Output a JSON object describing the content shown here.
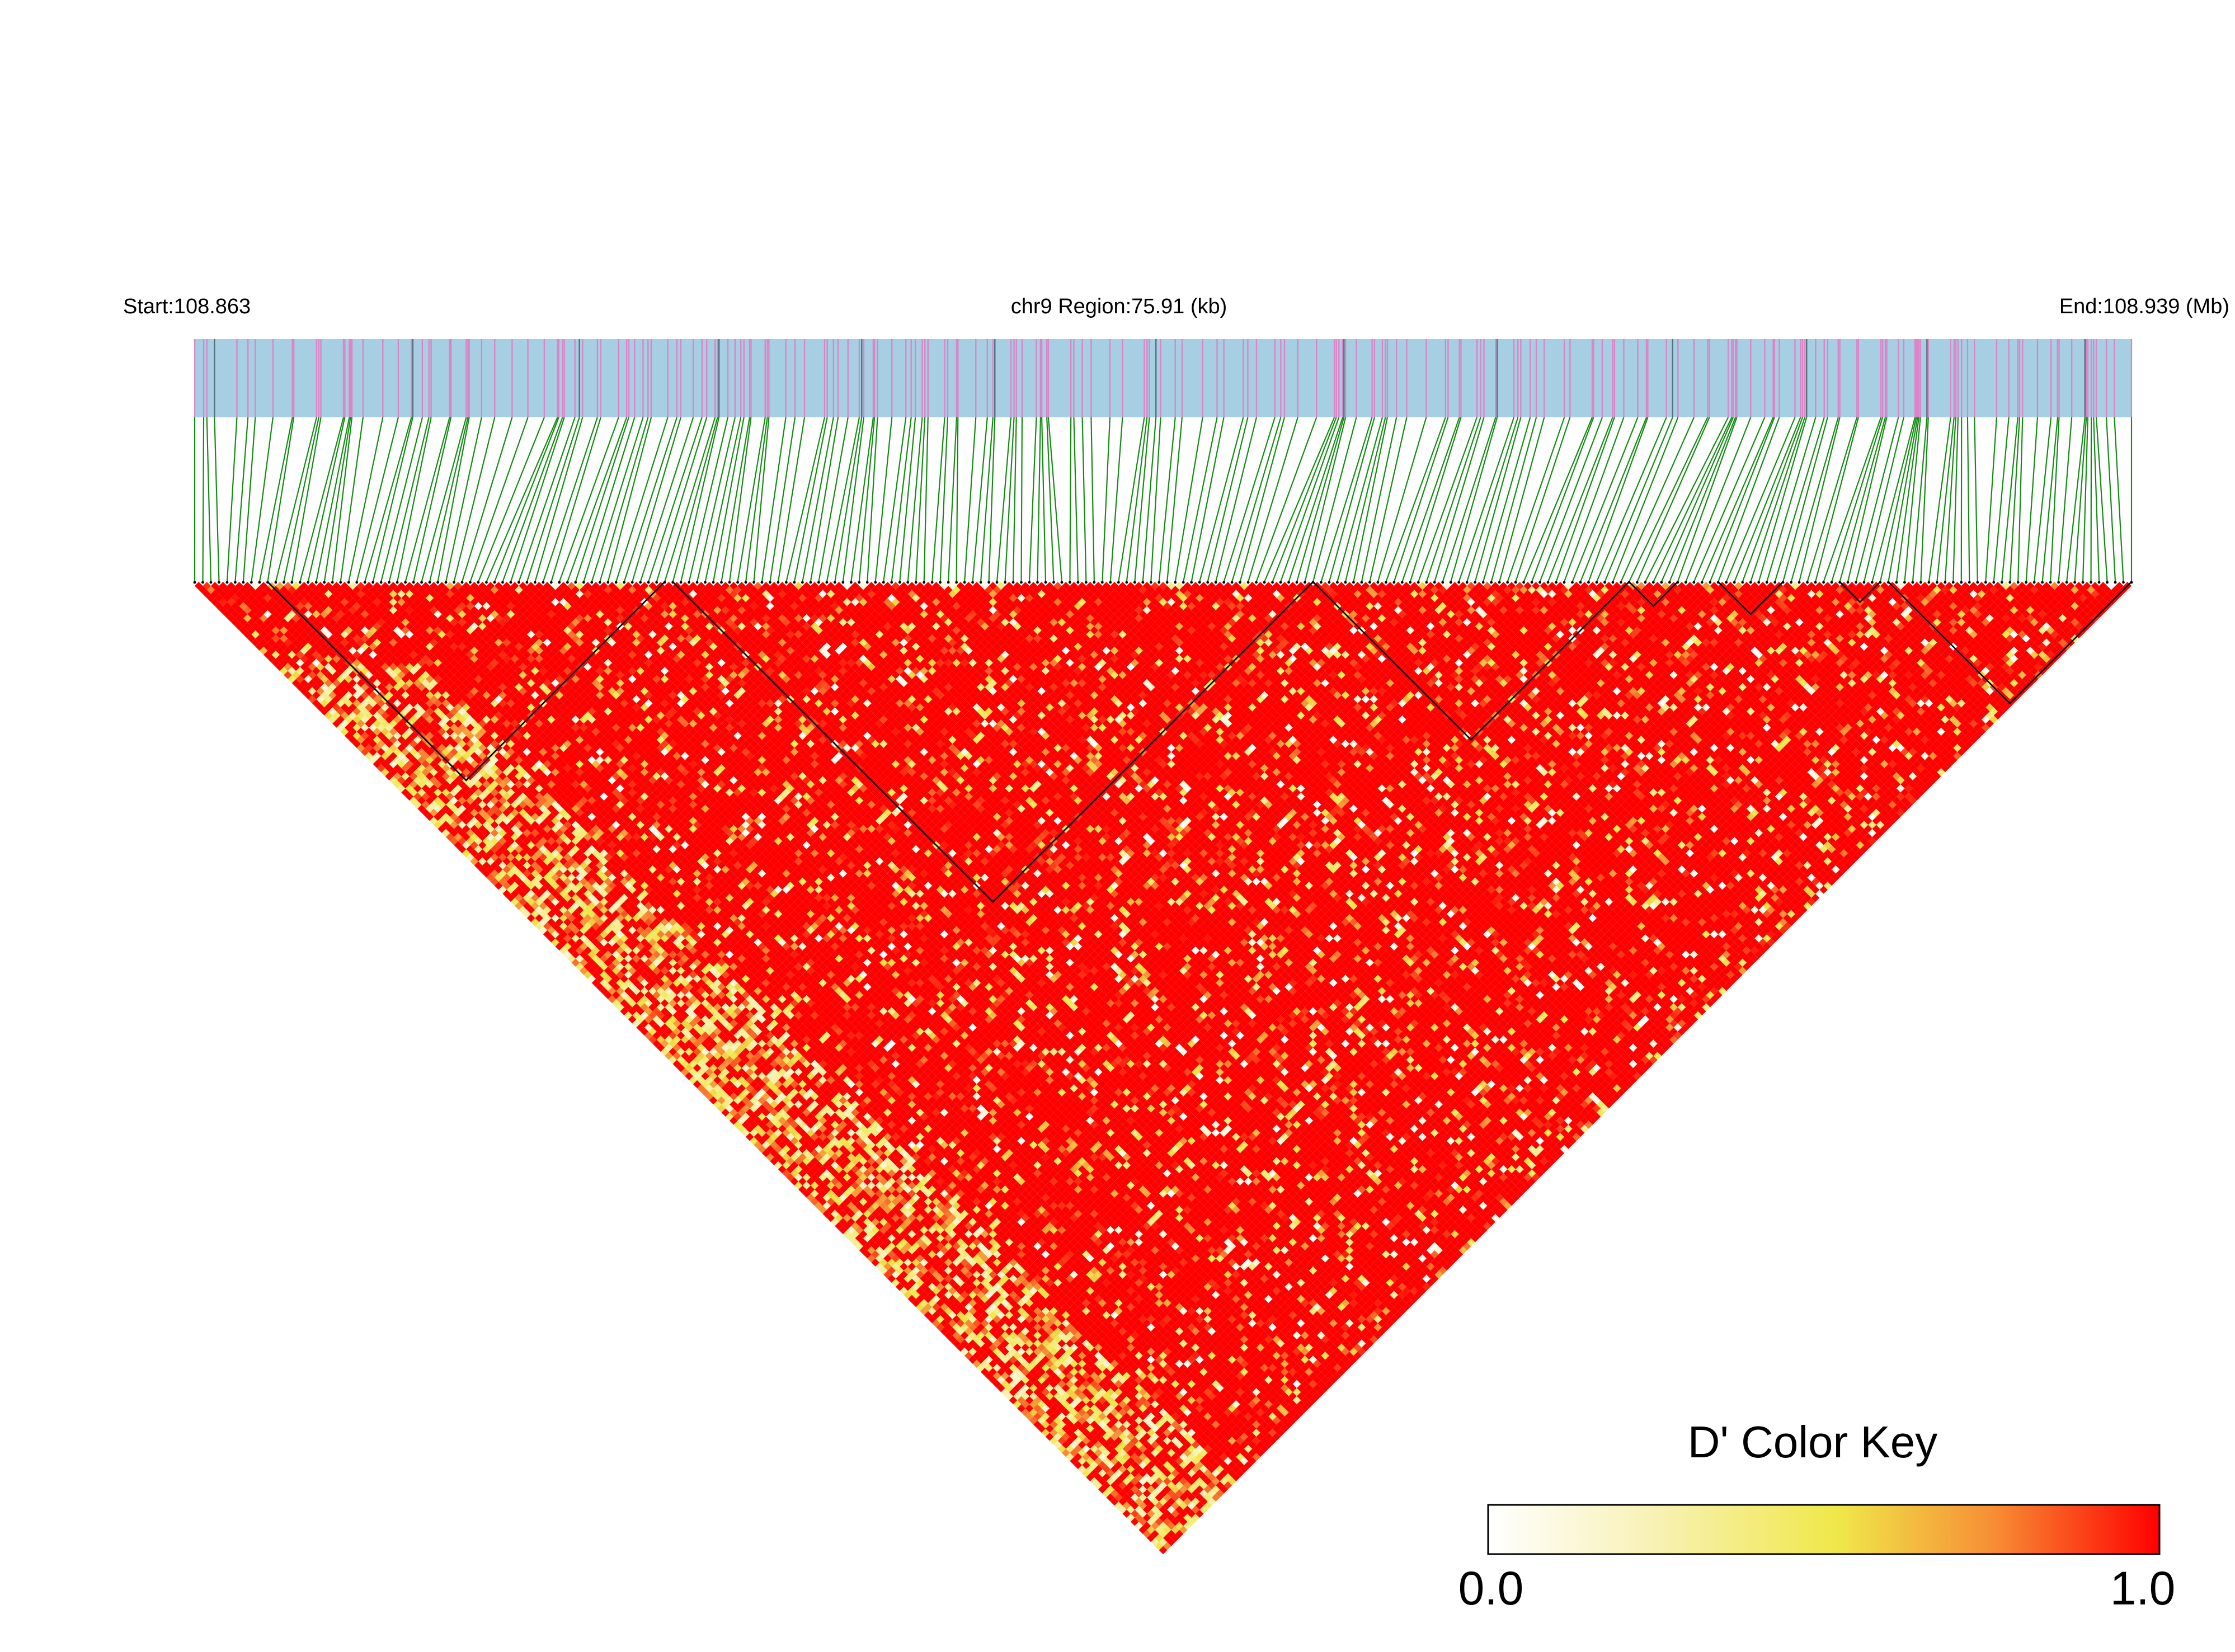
{
  "chart_data": {
    "type": "heatmap",
    "subtype": "linkage-disequilibrium-triangle",
    "start_label": "Start:108.863",
    "region_label": "chr9 Region:75.91 (kb)",
    "end_label": "End:108.939 (Mb)",
    "chromosome": "chr9",
    "start_mb": 108.863,
    "end_mb": 108.939,
    "region_kb": 75.91,
    "snp_count": 240,
    "metric": "D'",
    "color_key": {
      "title": "D' Color Key",
      "min_label": "0.0",
      "max_label": "1.0",
      "min": 0.0,
      "max": 1.0,
      "colors": [
        "#ffffff",
        "#f1e94a",
        "#ff0000"
      ]
    },
    "ld_blocks": [
      {
        "first_snp": 9,
        "last_snp": 58
      },
      {
        "first_snp": 59,
        "last_snp": 138
      },
      {
        "first_snp": 138,
        "last_snp": 177
      },
      {
        "first_snp": 177,
        "last_snp": 183
      },
      {
        "first_snp": 188,
        "last_snp": 196
      },
      {
        "first_snp": 203,
        "last_snp": 208
      },
      {
        "first_snp": 209,
        "last_snp": 239
      }
    ],
    "colors": {
      "track_fill": "#a7cfe3",
      "snp_tick": "#dc84c8",
      "connector": "#148c14",
      "heatmap_dominant": "#ff0000",
      "block_outline": "#000000"
    }
  }
}
